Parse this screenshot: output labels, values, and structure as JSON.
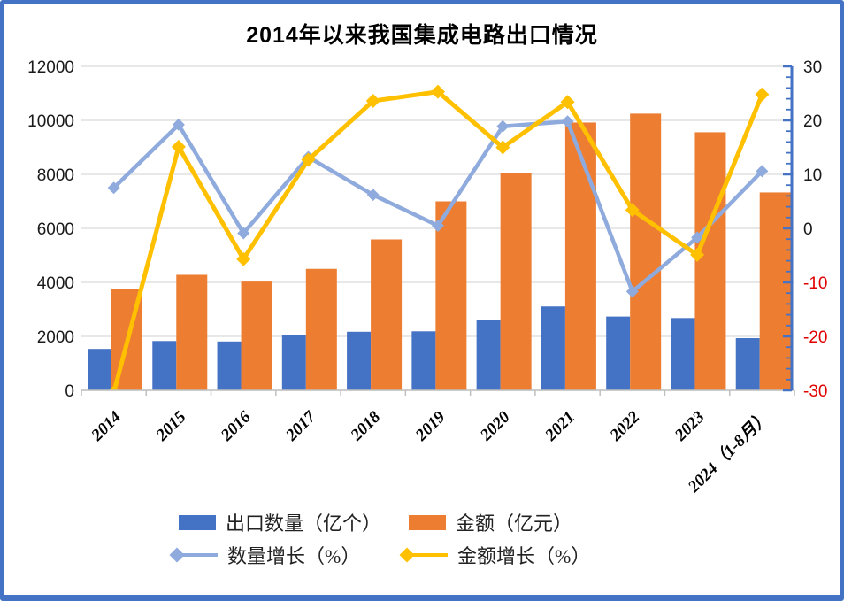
{
  "frame": {
    "border_color": "#4472C4"
  },
  "chart_data": {
    "type": "bar+line combo",
    "title": "2014年以来我国集成电路出口情况",
    "categories": [
      "2014",
      "2015",
      "2016",
      "2017",
      "2018",
      "2019",
      "2020",
      "2021",
      "2022",
      "2023",
      "2024（1-8月）"
    ],
    "series": [
      {
        "name": "出口数量（亿个）",
        "type": "bar",
        "axis": "left",
        "color": "#4472C4",
        "values": [
          1535,
          1827,
          1810,
          2043,
          2171,
          2187,
          2598,
          3107,
          2734,
          2678,
          1934
        ]
      },
      {
        "name": "金额（亿元）",
        "type": "bar",
        "axis": "left",
        "color": "#ED7D31",
        "values": [
          3740,
          4280,
          4030,
          4500,
          5590,
          7000,
          8050,
          9920,
          10250,
          9560,
          7330
        ]
      },
      {
        "name": "数量增长（%）",
        "type": "line",
        "axis": "right",
        "color": "#8FAADC",
        "values": [
          7.5,
          19.2,
          -0.9,
          13.2,
          6.2,
          0.5,
          18.9,
          19.8,
          -11.7,
          -1.7,
          10.6
        ]
      },
      {
        "name": "金额增长（%）",
        "type": "line",
        "axis": "right",
        "color": "#FFC000",
        "values": [
          -30.4,
          15.1,
          -5.7,
          12.7,
          23.6,
          25.3,
          15.0,
          23.4,
          3.4,
          -4.9,
          24.8
        ]
      }
    ],
    "left_axis": {
      "min": 0,
      "max": 12000,
      "step": 2000,
      "labels": [
        "0",
        "2000",
        "4000",
        "6000",
        "8000",
        "10000",
        "12000"
      ]
    },
    "right_axis": {
      "min": -30,
      "max": 30,
      "step": 10,
      "minor_step": 2,
      "labels": [
        "-30",
        "-20",
        "-10",
        "0",
        "10",
        "20",
        "30"
      ],
      "axis_color": "#4472C4",
      "negative_label_color": "#E00000"
    },
    "grid": true,
    "gridline_color": "#D9D9D9",
    "x_axis_color": "#BFBFBF",
    "legend_position": "bottom"
  }
}
